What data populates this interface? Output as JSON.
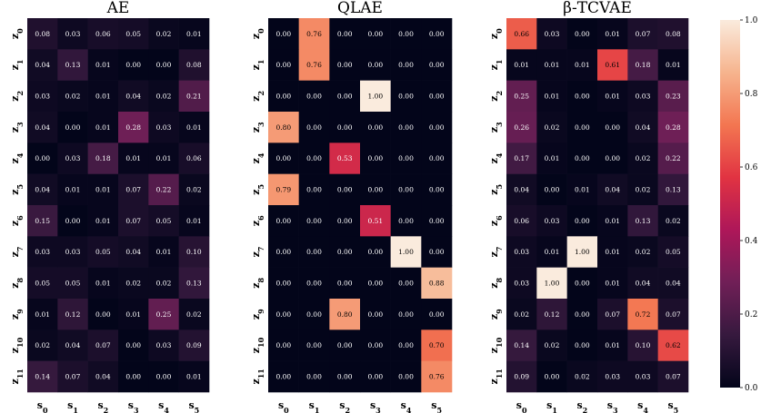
{
  "chart_data": [
    {
      "type": "heatmap",
      "title": "AE",
      "y_labels": [
        {
          "base": "z",
          "sub": "0"
        },
        {
          "base": "z",
          "sub": "1"
        },
        {
          "base": "z",
          "sub": "2"
        },
        {
          "base": "z",
          "sub": "3"
        },
        {
          "base": "z",
          "sub": "4"
        },
        {
          "base": "z",
          "sub": "5"
        },
        {
          "base": "z",
          "sub": "6"
        },
        {
          "base": "z",
          "sub": "7"
        },
        {
          "base": "z",
          "sub": "8"
        },
        {
          "base": "z",
          "sub": "9"
        },
        {
          "base": "z",
          "sub": "10"
        },
        {
          "base": "z",
          "sub": "11"
        }
      ],
      "x_labels": [
        {
          "base": "s",
          "sub": "0"
        },
        {
          "base": "s",
          "sub": "1"
        },
        {
          "base": "s",
          "sub": "2"
        },
        {
          "base": "s",
          "sub": "3"
        },
        {
          "base": "s",
          "sub": "4"
        },
        {
          "base": "s",
          "sub": "5"
        }
      ],
      "highlighted_rows": [],
      "values": [
        [
          0.08,
          0.03,
          0.06,
          0.05,
          0.02,
          0.01
        ],
        [
          0.04,
          0.13,
          0.01,
          0.0,
          0.0,
          0.08
        ],
        [
          0.03,
          0.02,
          0.01,
          0.04,
          0.02,
          0.21
        ],
        [
          0.04,
          0.0,
          0.01,
          0.28,
          0.03,
          0.01
        ],
        [
          0.0,
          0.03,
          0.18,
          0.01,
          0.01,
          0.06
        ],
        [
          0.04,
          0.01,
          0.01,
          0.07,
          0.22,
          0.02
        ],
        [
          0.15,
          0.0,
          0.01,
          0.07,
          0.05,
          0.01
        ],
        [
          0.03,
          0.03,
          0.05,
          0.04,
          0.01,
          0.1
        ],
        [
          0.05,
          0.05,
          0.01,
          0.02,
          0.02,
          0.13
        ],
        [
          0.01,
          0.12,
          0.0,
          0.01,
          0.25,
          0.02
        ],
        [
          0.02,
          0.04,
          0.07,
          0.0,
          0.03,
          0.09
        ],
        [
          0.14,
          0.07,
          0.04,
          0.0,
          0.0,
          0.01
        ]
      ]
    },
    {
      "type": "heatmap",
      "title": "QLAE",
      "y_labels": [
        {
          "base": "z",
          "sub": "0"
        },
        {
          "base": "z",
          "sub": "1"
        },
        {
          "base": "z",
          "sub": "2"
        },
        {
          "base": "z",
          "sub": "3"
        },
        {
          "base": "z",
          "sub": "4"
        },
        {
          "base": "z",
          "sub": "5"
        },
        {
          "base": "z",
          "sub": "6"
        },
        {
          "base": "z",
          "sub": "7"
        },
        {
          "base": "z",
          "sub": "8"
        },
        {
          "base": "z",
          "sub": "9"
        },
        {
          "base": "z",
          "sub": "10"
        },
        {
          "base": "z",
          "sub": "11"
        }
      ],
      "x_labels": [
        {
          "base": "s",
          "sub": "0"
        },
        {
          "base": "s",
          "sub": "1"
        },
        {
          "base": "s",
          "sub": "2"
        },
        {
          "base": "s",
          "sub": "3"
        },
        {
          "base": "s",
          "sub": "4"
        },
        {
          "base": "s",
          "sub": "5"
        }
      ],
      "highlighted_rows": [],
      "values": [
        [
          0.0,
          0.76,
          0.0,
          0.0,
          0.0,
          0.0
        ],
        [
          0.0,
          0.76,
          0.0,
          0.0,
          0.0,
          0.0
        ],
        [
          0.0,
          0.0,
          0.0,
          1.0,
          0.0,
          0.0
        ],
        [
          0.8,
          0.0,
          0.0,
          0.0,
          0.0,
          0.0
        ],
        [
          0.0,
          0.0,
          0.53,
          0.0,
          0.0,
          0.0
        ],
        [
          0.79,
          0.0,
          0.0,
          0.0,
          0.0,
          0.0
        ],
        [
          0.0,
          0.0,
          0.0,
          0.51,
          0.0,
          0.0
        ],
        [
          0.0,
          0.0,
          0.0,
          0.0,
          1.0,
          0.0
        ],
        [
          0.0,
          0.0,
          0.0,
          0.0,
          0.0,
          0.88
        ],
        [
          0.0,
          0.0,
          0.8,
          0.0,
          0.0,
          0.0
        ],
        [
          0.0,
          0.0,
          0.0,
          0.0,
          0.0,
          0.7
        ],
        [
          0.0,
          0.0,
          0.0,
          0.0,
          0.0,
          0.76
        ]
      ]
    },
    {
      "type": "heatmap",
      "title": "β-TCVAE",
      "y_labels": [
        {
          "base": "z",
          "sub": "0"
        },
        {
          "base": "z",
          "sub": "1"
        },
        {
          "base": "z",
          "sub": "2"
        },
        {
          "base": "z",
          "sub": "3"
        },
        {
          "base": "z",
          "sub": "4"
        },
        {
          "base": "z",
          "sub": "5"
        },
        {
          "base": "z",
          "sub": "6"
        },
        {
          "base": "z",
          "sub": "7"
        },
        {
          "base": "z",
          "sub": "8"
        },
        {
          "base": "z",
          "sub": "9"
        },
        {
          "base": "z",
          "sub": "10"
        },
        {
          "base": "z",
          "sub": "11"
        }
      ],
      "x_labels": [
        {
          "base": "s",
          "sub": "0"
        },
        {
          "base": "s",
          "sub": "1"
        },
        {
          "base": "s",
          "sub": "2"
        },
        {
          "base": "s",
          "sub": "3"
        },
        {
          "base": "s",
          "sub": "4"
        },
        {
          "base": "s",
          "sub": "5"
        }
      ],
      "highlighted_rows": [
        5,
        6,
        11
      ],
      "values": [
        [
          0.66,
          0.03,
          0.0,
          0.01,
          0.07,
          0.08
        ],
        [
          0.01,
          0.01,
          0.01,
          0.61,
          0.18,
          0.01
        ],
        [
          0.25,
          0.01,
          0.0,
          0.01,
          0.03,
          0.23
        ],
        [
          0.26,
          0.02,
          0.0,
          0.0,
          0.04,
          0.28
        ],
        [
          0.17,
          0.01,
          0.0,
          0.0,
          0.02,
          0.22
        ],
        [
          0.04,
          0.0,
          0.01,
          0.04,
          0.02,
          0.13
        ],
        [
          0.06,
          0.03,
          0.0,
          0.01,
          0.13,
          0.02
        ],
        [
          0.03,
          0.01,
          1.0,
          0.01,
          0.02,
          0.05
        ],
        [
          0.03,
          1.0,
          0.0,
          0.01,
          0.04,
          0.04
        ],
        [
          0.02,
          0.12,
          0.0,
          0.07,
          0.72,
          0.07
        ],
        [
          0.14,
          0.02,
          0.0,
          0.01,
          0.1,
          0.62
        ],
        [
          0.09,
          0.0,
          0.02,
          0.03,
          0.03,
          0.07
        ]
      ]
    }
  ],
  "colorbar": {
    "min": 0.0,
    "max": 1.0,
    "ticks": [
      "0.0",
      "0.2",
      "0.4",
      "0.6",
      "0.8",
      "1.0"
    ]
  },
  "colors": {
    "highlight_label": "#e8201a",
    "colormap_stops": [
      "#03051a",
      "#36193e",
      "#701f57",
      "#ae1759",
      "#e13342",
      "#f37651",
      "#f6b48e",
      "#faebdd"
    ]
  }
}
